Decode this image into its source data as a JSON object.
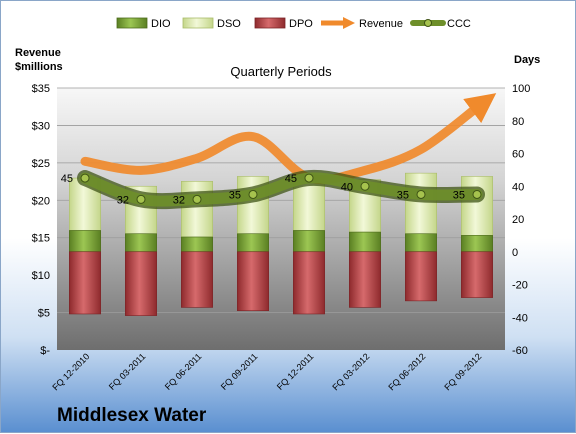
{
  "company": "Middlesex Water",
  "chart_data": {
    "type": "bar",
    "title": "Quarterly Periods",
    "ylabel_left": [
      "Revenue",
      "$millions"
    ],
    "ylabel_right": "Days",
    "categories": [
      "FQ 12-2010",
      "FQ 03-2011",
      "FQ 06-2011",
      "FQ 09-2011",
      "FQ 12-2011",
      "FQ 03-2012",
      "FQ 06-2012",
      "FQ 09-2012"
    ],
    "left_axis": {
      "min": 0,
      "max": 35,
      "step": 5,
      "ticks": [
        "$-",
        "$5",
        "$10",
        "$15",
        "$20",
        "$25",
        "$30",
        "$35"
      ]
    },
    "right_axis": {
      "min": -60,
      "max": 100,
      "step": 20,
      "ticks": [
        "-60",
        "-40",
        "-20",
        "0",
        "20",
        "40",
        "60",
        "80",
        "100"
      ]
    },
    "grid": true,
    "legend": {
      "placement": "top",
      "entries": [
        "DIO",
        "DSO",
        "DPO",
        "Revenue",
        "CCC"
      ]
    },
    "series": [
      {
        "name": "DIO",
        "values": [
          13,
          11,
          9,
          11,
          13,
          12,
          11,
          10
        ],
        "color": "#6f9a2e"
      },
      {
        "name": "DSO",
        "values": [
          32,
          29,
          34,
          35,
          32,
          32,
          37,
          36
        ],
        "color": "#dbe9a6"
      },
      {
        "name": "DPO",
        "values": [
          -38,
          -39,
          -34,
          -36,
          -38,
          -34,
          -30,
          -28
        ],
        "color": "#b54043"
      },
      {
        "name": "Revenue",
        "values": [
          25.2,
          24.0,
          25.6,
          28.5,
          23.0,
          24.0,
          26.8,
          32.4
        ],
        "color": "#f08a2c"
      },
      {
        "name": "CCC",
        "values": [
          45,
          32,
          32,
          35,
          45,
          40,
          35,
          35
        ],
        "labels": [
          "45",
          "32",
          "32",
          "35",
          "45",
          "40",
          "35",
          "35"
        ],
        "color": "#5e7a22"
      }
    ]
  }
}
